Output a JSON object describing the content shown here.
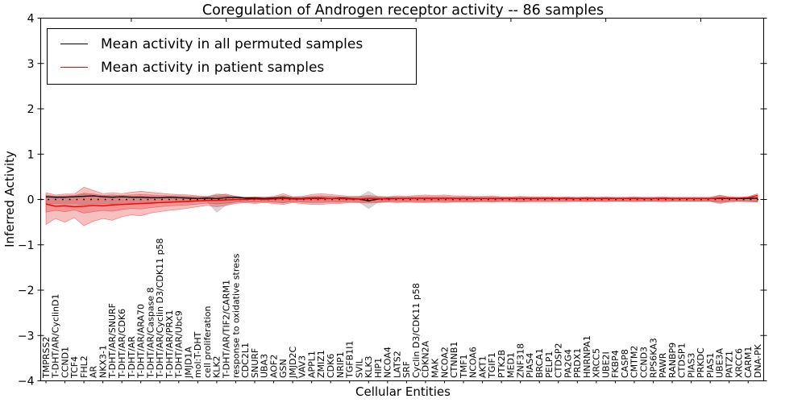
{
  "chart_data": {
    "type": "line",
    "title": "Coregulation of Androgen receptor activity -- 86 samples",
    "xlabel": "Cellular Entities",
    "ylabel": "Inferred Activity",
    "ylim": [
      -4,
      4
    ],
    "grid": false,
    "legend_position": "upper left",
    "zero_line": {
      "y": 0,
      "style": "dotted",
      "color": "#000000"
    },
    "ytick_labels": [
      "4",
      "3",
      "2",
      "1",
      "0",
      "−1",
      "−2",
      "−3",
      "−4"
    ],
    "categories": [
      "TMPRSS2",
      "T-DHT/AR/CyclinD1",
      "CCND1",
      "TCF4",
      "FHL2",
      "AR",
      "NKX3-1",
      "T-DHT/AR/SNURF",
      "T-DHT/AR/CDK6",
      "T-DHT/AR",
      "T-DHT/AR/ARA70",
      "T-DHT/AR/Caspase 8",
      "T-DHT/AR/Cyclin D3/CDK11 p58",
      "T-DHT/AR/PRX1",
      "T-DHT/AR/Ubc9",
      "JMJD1A",
      "mol:T-DHT",
      "cell proliferation",
      "KLK2",
      "T-DHT/AR/TIF2/CARM1",
      "response to oxidative stress",
      "CDC2L1",
      "SNURF",
      "UBA3",
      "AOF2",
      "GSN",
      "JMJD2C",
      "VAV3",
      "APPL1",
      "ZMIZ1",
      "CDK6",
      "NRIP1",
      "TGFB1I1",
      "SVIL",
      "KLK3",
      "HIP1",
      "NCOA4",
      "LATS2",
      "SRF",
      "Cyclin D3/CDK11 p58",
      "CDKN2A",
      "MAK",
      "NCOA2",
      "CTNNB1",
      "TMF1",
      "NCOA6",
      "AKT1",
      "TGIF1",
      "PTK2B",
      "MED1",
      "ZNF318",
      "PIAS4",
      "BRCA1",
      "PELP1",
      "CTDSP2",
      "PA2G4",
      "PRDX1",
      "HNRNPA1",
      "XRCC5",
      "UBE2I",
      "FKBP4",
      "CASP8",
      "CMTM2",
      "CCND3",
      "RPS6KA3",
      "PAWR",
      "RANBP9",
      "CTDSP1",
      "PIAS3",
      "PRKDC",
      "PIAS1",
      "UBE3A",
      "PATZ1",
      "XRCC6",
      "CARM1",
      "DNA-PK"
    ],
    "series": [
      {
        "name": "Mean activity in all permuted samples",
        "color": "#000000",
        "values": [
          0.06,
          0.05,
          0.05,
          0.06,
          0.07,
          0.08,
          0.06,
          0.05,
          0.06,
          0.05,
          0.05,
          0.04,
          0.04,
          0.05,
          0.04,
          0.03,
          0.02,
          0.03,
          0.02,
          0.04,
          0.05,
          0.03,
          0.03,
          0.02,
          0.03,
          0.04,
          0.02,
          0.02,
          0.03,
          0.03,
          0.02,
          0.03,
          0.02,
          0.01,
          -0.03,
          0.01,
          0.02,
          0.02,
          0.02,
          0.02,
          0.02,
          0.02,
          0.02,
          0.02,
          0.02,
          0.02,
          0.02,
          0.02,
          0.02,
          0.02,
          0.02,
          0.02,
          0.02,
          0.02,
          0.02,
          0.02,
          0.02,
          0.02,
          0.02,
          0.02,
          0.02,
          0.02,
          0.02,
          0.02,
          0.02,
          0.02,
          0.02,
          0.02,
          0.02,
          0.02,
          0.02,
          0.02,
          0.02,
          0.02,
          0.02,
          0.03
        ]
      },
      {
        "name": "Mean activity in patient samples",
        "color": "#ff0000",
        "values": [
          -0.1,
          -0.15,
          -0.14,
          -0.16,
          -0.15,
          -0.13,
          -0.14,
          -0.12,
          -0.11,
          -0.1,
          -0.09,
          -0.08,
          -0.07,
          -0.06,
          -0.05,
          -0.04,
          -0.03,
          -0.02,
          -0.02,
          -0.01,
          0.0,
          0.0,
          0.01,
          0.0,
          0.01,
          0.02,
          0.01,
          0.01,
          0.02,
          0.02,
          0.02,
          0.02,
          0.01,
          0.01,
          0.02,
          0.02,
          0.01,
          0.02,
          0.02,
          0.02,
          0.02,
          0.02,
          0.02,
          0.02,
          0.02,
          0.02,
          0.02,
          0.02,
          0.02,
          0.02,
          0.02,
          0.02,
          0.02,
          0.02,
          0.02,
          0.02,
          0.02,
          0.02,
          0.02,
          0.02,
          0.02,
          0.02,
          0.02,
          0.02,
          0.02,
          0.02,
          0.02,
          0.02,
          0.02,
          0.02,
          0.02,
          0.03,
          0.03,
          0.03,
          0.04,
          0.09
        ]
      }
    ],
    "bands": [
      {
        "name": "permuted-std-band",
        "color": "rgba(120,120,120,0.30)",
        "upper": [
          0.08,
          0.07,
          0.07,
          0.08,
          0.12,
          0.1,
          0.08,
          0.08,
          0.08,
          0.07,
          0.08,
          0.07,
          0.06,
          0.07,
          0.06,
          0.06,
          0.05,
          0.06,
          0.13,
          0.1,
          0.08,
          0.05,
          0.05,
          0.05,
          0.05,
          0.08,
          0.05,
          0.05,
          0.06,
          0.06,
          0.05,
          0.05,
          0.05,
          0.06,
          0.18,
          0.06,
          0.05,
          0.05,
          0.05,
          0.05,
          0.05,
          0.05,
          0.05,
          0.05,
          0.05,
          0.05,
          0.04,
          0.05,
          0.04,
          0.04,
          0.05,
          0.04,
          0.04,
          0.04,
          0.04,
          0.04,
          0.04,
          0.04,
          0.04,
          0.04,
          0.04,
          0.04,
          0.04,
          0.04,
          0.04,
          0.04,
          0.04,
          0.04,
          0.04,
          0.04,
          0.04,
          0.1,
          0.05,
          0.04,
          0.04,
          0.05
        ],
        "lower": [
          -0.1,
          -0.09,
          -0.1,
          -0.09,
          -0.12,
          -0.1,
          -0.09,
          -0.1,
          -0.09,
          -0.08,
          -0.08,
          -0.07,
          -0.07,
          -0.06,
          -0.06,
          -0.06,
          -0.05,
          -0.05,
          -0.28,
          -0.12,
          -0.06,
          -0.05,
          -0.05,
          -0.04,
          -0.05,
          -0.08,
          -0.04,
          -0.05,
          -0.05,
          -0.05,
          -0.04,
          -0.05,
          -0.04,
          -0.06,
          -0.2,
          -0.06,
          -0.04,
          -0.04,
          -0.04,
          -0.04,
          -0.04,
          -0.04,
          -0.04,
          -0.04,
          -0.04,
          -0.04,
          -0.04,
          -0.04,
          -0.04,
          -0.04,
          -0.04,
          -0.04,
          -0.04,
          -0.04,
          -0.04,
          -0.04,
          -0.04,
          -0.04,
          -0.04,
          -0.04,
          -0.04,
          -0.04,
          -0.04,
          -0.04,
          -0.04,
          -0.04,
          -0.04,
          -0.04,
          -0.04,
          -0.04,
          -0.04,
          -0.1,
          -0.05,
          -0.04,
          -0.04,
          -0.05
        ]
      },
      {
        "name": "patient-std-outer-band",
        "color": "rgba(230,60,60,0.32)",
        "upper": [
          0.15,
          0.1,
          0.12,
          0.12,
          0.27,
          0.2,
          0.13,
          0.15,
          0.13,
          0.16,
          0.18,
          0.16,
          0.14,
          0.12,
          0.11,
          0.1,
          0.08,
          0.07,
          0.1,
          0.12,
          0.06,
          0.05,
          0.06,
          0.05,
          0.07,
          0.13,
          0.06,
          0.07,
          0.11,
          0.13,
          0.11,
          0.09,
          0.07,
          0.07,
          0.09,
          0.07,
          0.06,
          0.08,
          0.07,
          0.09,
          0.1,
          0.09,
          0.1,
          0.08,
          0.08,
          0.07,
          0.07,
          0.08,
          0.06,
          0.06,
          0.07,
          0.06,
          0.06,
          0.06,
          0.05,
          0.06,
          0.05,
          0.06,
          0.05,
          0.06,
          0.05,
          0.05,
          0.06,
          0.05,
          0.05,
          0.06,
          0.05,
          0.05,
          0.05,
          0.05,
          0.05,
          0.09,
          0.06,
          0.05,
          0.06,
          0.13
        ],
        "lower": [
          -0.55,
          -0.42,
          -0.5,
          -0.4,
          -0.58,
          -0.48,
          -0.42,
          -0.46,
          -0.38,
          -0.34,
          -0.36,
          -0.3,
          -0.27,
          -0.24,
          -0.22,
          -0.19,
          -0.16,
          -0.13,
          -0.16,
          -0.13,
          -0.09,
          -0.07,
          -0.09,
          -0.07,
          -0.09,
          -0.11,
          -0.07,
          -0.09,
          -0.11,
          -0.11,
          -0.09,
          -0.09,
          -0.07,
          -0.07,
          -0.08,
          -0.07,
          -0.06,
          -0.07,
          -0.06,
          -0.07,
          -0.07,
          -0.06,
          -0.07,
          -0.06,
          -0.06,
          -0.06,
          -0.05,
          -0.06,
          -0.05,
          -0.05,
          -0.06,
          -0.05,
          -0.05,
          -0.05,
          -0.05,
          -0.05,
          -0.04,
          -0.05,
          -0.04,
          -0.05,
          -0.04,
          -0.04,
          -0.05,
          -0.04,
          -0.04,
          -0.05,
          -0.04,
          -0.04,
          -0.04,
          -0.04,
          -0.04,
          -0.07,
          -0.05,
          -0.04,
          -0.05,
          -0.06
        ]
      },
      {
        "name": "patient-std-inner-band",
        "color": "rgba(230,60,60,0.32)",
        "upper": [
          0.1,
          0.07,
          0.08,
          0.09,
          0.14,
          0.12,
          0.09,
          0.1,
          0.09,
          0.1,
          0.11,
          0.1,
          0.09,
          0.08,
          0.08,
          0.07,
          0.06,
          0.05,
          0.07,
          0.08,
          0.04,
          0.04,
          0.04,
          0.04,
          0.05,
          0.08,
          0.04,
          0.05,
          0.07,
          0.08,
          0.07,
          0.06,
          0.05,
          0.05,
          0.06,
          0.05,
          0.04,
          0.05,
          0.05,
          0.06,
          0.06,
          0.06,
          0.06,
          0.05,
          0.05,
          0.05,
          0.05,
          0.05,
          0.04,
          0.04,
          0.05,
          0.04,
          0.04,
          0.04,
          0.04,
          0.04,
          0.03,
          0.04,
          0.03,
          0.04,
          0.03,
          0.03,
          0.04,
          0.03,
          0.03,
          0.04,
          0.03,
          0.03,
          0.03,
          0.03,
          0.03,
          0.06,
          0.04,
          0.03,
          0.04,
          0.09
        ],
        "lower": [
          -0.28,
          -0.24,
          -0.27,
          -0.23,
          -0.3,
          -0.27,
          -0.24,
          -0.26,
          -0.22,
          -0.2,
          -0.21,
          -0.18,
          -0.16,
          -0.14,
          -0.13,
          -0.12,
          -0.1,
          -0.08,
          -0.1,
          -0.08,
          -0.06,
          -0.05,
          -0.06,
          -0.05,
          -0.06,
          -0.07,
          -0.05,
          -0.06,
          -0.07,
          -0.07,
          -0.06,
          -0.06,
          -0.05,
          -0.05,
          -0.05,
          -0.05,
          -0.04,
          -0.05,
          -0.04,
          -0.05,
          -0.05,
          -0.04,
          -0.05,
          -0.04,
          -0.04,
          -0.04,
          -0.03,
          -0.04,
          -0.03,
          -0.03,
          -0.04,
          -0.03,
          -0.03,
          -0.03,
          -0.03,
          -0.03,
          -0.03,
          -0.03,
          -0.03,
          -0.03,
          -0.03,
          -0.03,
          -0.03,
          -0.03,
          -0.03,
          -0.03,
          -0.03,
          -0.03,
          -0.03,
          -0.03,
          -0.03,
          -0.05,
          -0.03,
          -0.03,
          -0.03,
          -0.04
        ]
      }
    ]
  },
  "legend": {
    "items": [
      {
        "label": "Mean activity in all permuted samples",
        "color": "#000000"
      },
      {
        "label": "Mean activity in patient samples",
        "color": "#ff0000"
      }
    ]
  }
}
